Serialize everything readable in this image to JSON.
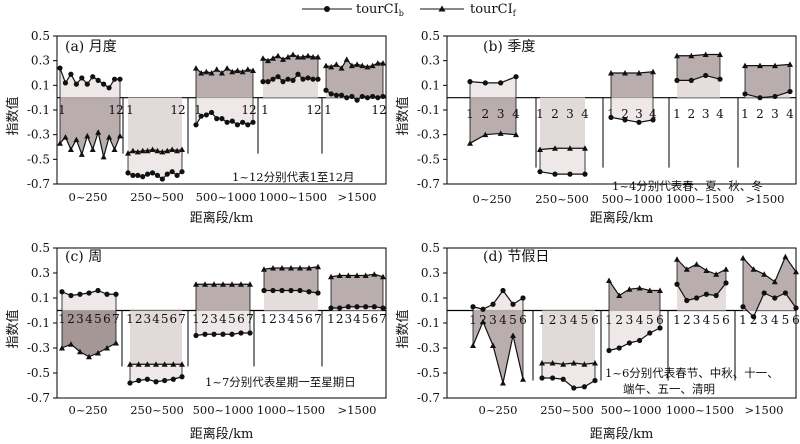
{
  "legend": [
    {
      "label": "tourCI",
      "sub": "b",
      "marker": "circle"
    },
    {
      "label": "tourCI",
      "sub": "f",
      "marker": "triangle"
    }
  ],
  "colors": {
    "upper_band": "#b3a4a4",
    "lower_band": "#ece4e4",
    "lower_band_dark": "#9c8c8c",
    "line": "#111111",
    "axis": "#000000"
  },
  "chart_data": [
    {
      "type": "line",
      "title": "(a) 月度",
      "xlabel": "距离段/km",
      "ylabel": "指数值",
      "ylim": [
        -0.7,
        0.5
      ],
      "yticks": [
        "0.5",
        "0.3",
        "0.1",
        "-0.1",
        "-0.3",
        "-0.5",
        "-0.7"
      ],
      "categories": [
        "0~250",
        "250~500",
        "500~1000",
        "1000~1500",
        ">1500"
      ],
      "index_labels": [
        "1",
        "12",
        "1",
        "12",
        "1",
        "12",
        "1",
        "12",
        "1",
        "12"
      ],
      "note": [
        "1~12分别代表1至12月"
      ],
      "groups": [
        {
          "b": [
            0.24,
            0.12,
            0.19,
            0.11,
            0.16,
            0.11,
            0.17,
            0.14,
            0.11,
            0.08,
            0.15,
            0.15
          ],
          "f": [
            -0.37,
            -0.32,
            -0.42,
            -0.34,
            -0.46,
            -0.31,
            -0.42,
            -0.28,
            -0.48,
            -0.32,
            -0.42,
            -0.31
          ]
        },
        {
          "b": [
            -0.61,
            -0.63,
            -0.63,
            -0.64,
            -0.62,
            -0.61,
            -0.63,
            -0.66,
            -0.62,
            -0.6,
            -0.63,
            -0.6
          ],
          "f": [
            -0.45,
            -0.43,
            -0.44,
            -0.43,
            -0.43,
            -0.42,
            -0.43,
            -0.44,
            -0.43,
            -0.42,
            -0.43,
            -0.42
          ]
        },
        {
          "b": [
            -0.22,
            -0.15,
            -0.14,
            -0.12,
            -0.17,
            -0.17,
            -0.2,
            -0.19,
            -0.22,
            -0.2,
            -0.22,
            -0.2
          ],
          "f": [
            0.24,
            0.2,
            0.21,
            0.2,
            0.23,
            0.2,
            0.24,
            0.21,
            0.22,
            0.21,
            0.23,
            0.22
          ]
        },
        {
          "b": [
            0.13,
            0.13,
            0.15,
            0.17,
            0.13,
            0.15,
            0.14,
            0.19,
            0.15,
            0.16,
            0.15,
            0.15
          ],
          "f": [
            0.32,
            0.3,
            0.32,
            0.34,
            0.31,
            0.33,
            0.35,
            0.33,
            0.33,
            0.34,
            0.33,
            0.33
          ]
        },
        {
          "b": [
            0.06,
            0.03,
            0.02,
            0.02,
            0.0,
            0.01,
            -0.02,
            0.01,
            0.0,
            0.01,
            0.0,
            0.01
          ],
          "f": [
            0.26,
            0.25,
            0.27,
            0.24,
            0.31,
            0.26,
            0.27,
            0.26,
            0.25,
            0.26,
            0.28,
            0.28
          ]
        }
      ]
    },
    {
      "type": "line",
      "title": "(b) 季度",
      "xlabel": "距离段/km",
      "ylabel": "指数值",
      "ylim": [
        -0.7,
        0.5
      ],
      "yticks": [
        "0.5",
        "0.3",
        "0.1",
        "-0.1",
        "-0.3",
        "-0.5",
        "-0.7"
      ],
      "categories": [
        "0~250",
        "250~500",
        "500~1000",
        "1000~1500",
        ">1500"
      ],
      "index_labels": [
        "1",
        "2",
        "3",
        "4"
      ],
      "note": [
        "1~4分别代表春、夏、秋、冬"
      ],
      "groups": [
        {
          "b": [
            0.13,
            0.12,
            0.12,
            0.17
          ],
          "f": [
            -0.37,
            -0.3,
            -0.29,
            -0.3
          ]
        },
        {
          "b": [
            -0.6,
            -0.62,
            -0.62,
            -0.62
          ],
          "f": [
            -0.42,
            -0.41,
            -0.41,
            -0.41
          ]
        },
        {
          "b": [
            -0.16,
            -0.18,
            -0.2,
            -0.18
          ],
          "f": [
            0.2,
            0.2,
            0.2,
            0.21
          ]
        },
        {
          "b": [
            0.14,
            0.14,
            0.18,
            0.15
          ],
          "f": [
            0.34,
            0.34,
            0.35,
            0.35
          ]
        },
        {
          "b": [
            0.03,
            0.0,
            0.01,
            0.05
          ],
          "f": [
            0.26,
            0.26,
            0.26,
            0.27
          ]
        }
      ]
    },
    {
      "type": "line",
      "title": "(c) 周",
      "xlabel": "距离段/km",
      "ylabel": "指数值",
      "ylim": [
        -0.7,
        0.5
      ],
      "yticks": [
        "0.5",
        "0.3",
        "0.1",
        "-0.1",
        "-0.3",
        "-0.5",
        "-0.7"
      ],
      "categories": [
        "0~250",
        "250~500",
        "500~1000",
        "1000~1500",
        ">1500"
      ],
      "index_labels": [
        "1",
        "2",
        "3",
        "4",
        "5",
        "6",
        "7"
      ],
      "note": [
        "1~7分别代表星期一至星期日"
      ],
      "groups": [
        {
          "b": [
            0.15,
            0.12,
            0.13,
            0.14,
            0.16,
            0.13,
            0.13
          ],
          "f": [
            -0.3,
            -0.27,
            -0.33,
            -0.37,
            -0.34,
            -0.3,
            -0.26
          ]
        },
        {
          "b": [
            -0.58,
            -0.56,
            -0.55,
            -0.57,
            -0.56,
            -0.55,
            -0.53
          ],
          "f": [
            -0.43,
            -0.43,
            -0.43,
            -0.43,
            -0.43,
            -0.43,
            -0.43
          ]
        },
        {
          "b": [
            -0.2,
            -0.19,
            -0.19,
            -0.19,
            -0.19,
            -0.18,
            -0.18
          ],
          "f": [
            0.21,
            0.21,
            0.21,
            0.21,
            0.21,
            0.21,
            0.21
          ]
        },
        {
          "b": [
            0.16,
            0.16,
            0.16,
            0.16,
            0.16,
            0.15,
            0.14
          ],
          "f": [
            0.33,
            0.34,
            0.34,
            0.34,
            0.34,
            0.34,
            0.35
          ]
        },
        {
          "b": [
            0.02,
            0.02,
            0.03,
            0.03,
            0.03,
            0.03,
            0.02
          ],
          "f": [
            0.27,
            0.28,
            0.28,
            0.28,
            0.28,
            0.29,
            0.27
          ]
        }
      ]
    },
    {
      "type": "line",
      "title": "(d) 节假日",
      "xlabel": "距离段/km",
      "ylabel": "指数值",
      "ylim": [
        -0.7,
        0.5
      ],
      "yticks": [
        "0.5",
        "0.3",
        "0.1",
        "-0.1",
        "-0.3",
        "-0.5",
        "-0.7"
      ],
      "categories": [
        "0~250",
        "250~500",
        "500~1000",
        "1000~1500",
        ">1500"
      ],
      "index_labels": [
        "1",
        "2",
        "3",
        "4",
        "5",
        "6"
      ],
      "note": [
        "1~6分别代表春节、中秋、十一、",
        "端午、五一、清明"
      ],
      "groups": [
        {
          "b": [
            0.03,
            0.01,
            0.05,
            0.16,
            0.05,
            0.1
          ],
          "f": [
            -0.28,
            -0.09,
            -0.28,
            -0.58,
            -0.2,
            -0.55
          ]
        },
        {
          "b": [
            -0.54,
            -0.54,
            -0.55,
            -0.62,
            -0.61,
            -0.56
          ],
          "f": [
            -0.42,
            -0.42,
            -0.43,
            -0.42,
            -0.43,
            -0.42
          ]
        },
        {
          "b": [
            -0.32,
            -0.3,
            -0.26,
            -0.24,
            -0.18,
            -0.14
          ],
          "f": [
            0.24,
            0.12,
            0.17,
            0.18,
            0.16,
            0.16
          ]
        },
        {
          "b": [
            0.21,
            0.08,
            0.1,
            0.13,
            0.12,
            0.22
          ],
          "f": [
            0.41,
            0.33,
            0.37,
            0.32,
            0.29,
            0.33
          ]
        },
        {
          "b": [
            0.03,
            -0.05,
            0.14,
            0.1,
            0.14,
            0.02
          ],
          "f": [
            0.42,
            0.33,
            0.29,
            0.23,
            0.43,
            0.31
          ]
        }
      ]
    }
  ]
}
